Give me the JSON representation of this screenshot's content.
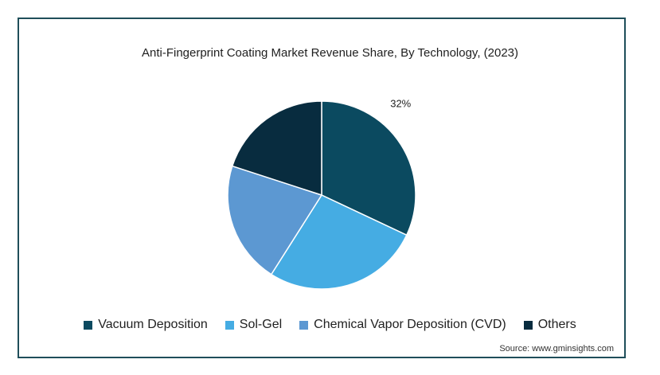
{
  "chart_data": {
    "type": "pie",
    "title": "Anti-Fingerprint Coating Market Revenue Share, By Technology, (2023)",
    "categories": [
      "Vacuum Deposition",
      "Sol-Gel",
      "Chemical Vapor Deposition (CVD)",
      "Others"
    ],
    "values": [
      32,
      27,
      21,
      20
    ],
    "colors": [
      "#0b4a60",
      "#45ace3",
      "#5c98d2",
      "#082c3f"
    ],
    "data_labels": [
      "32%",
      "",
      "",
      ""
    ],
    "legend_position": "bottom"
  },
  "source": "Source: www.gminsights.com"
}
